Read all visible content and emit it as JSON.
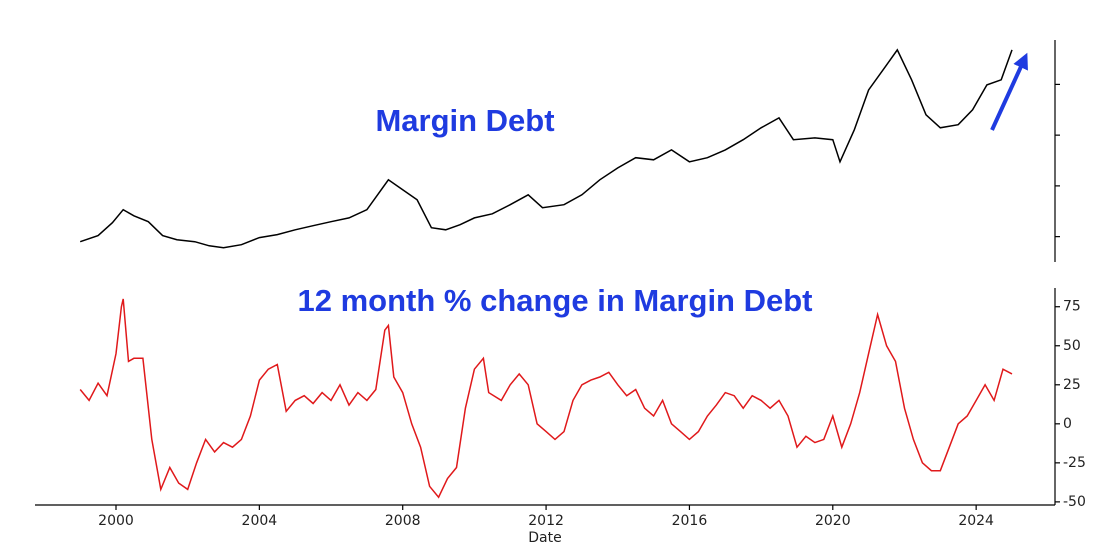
{
  "chart_data": [
    {
      "type": "line",
      "title": "Margin Debt",
      "color": "#000000",
      "xlim": [
        1997.74,
        2026.2
      ],
      "ylim": [
        100,
        975
      ],
      "yticks": [
        200,
        400,
        600,
        800
      ],
      "show_ytick_labels": false,
      "x": [
        1999.0,
        1999.5,
        1999.9,
        2000.2,
        2000.5,
        2000.9,
        2001.3,
        2001.7,
        2002.2,
        2002.6,
        2003.0,
        2003.5,
        2004.0,
        2004.5,
        2005.0,
        2005.5,
        2006.0,
        2006.5,
        2007.0,
        2007.3,
        2007.6,
        2008.0,
        2008.4,
        2008.8,
        2009.2,
        2009.6,
        2010.0,
        2010.5,
        2011.0,
        2011.5,
        2011.9,
        2012.5,
        2013.0,
        2013.5,
        2014.0,
        2014.5,
        2015.0,
        2015.5,
        2016.0,
        2016.5,
        2017.0,
        2017.5,
        2018.0,
        2018.5,
        2018.9,
        2019.5,
        2020.0,
        2020.2,
        2020.6,
        2021.0,
        2021.5,
        2021.8,
        2022.2,
        2022.6,
        2023.0,
        2023.5,
        2023.9,
        2024.3,
        2024.7,
        2025.0
      ],
      "values": [
        180,
        204,
        255,
        306,
        282,
        259,
        204,
        188,
        180,
        164,
        156,
        168,
        196,
        208,
        227,
        243,
        259,
        274,
        306,
        365,
        424,
        385,
        345,
        235,
        227,
        247,
        274,
        290,
        326,
        365,
        314,
        326,
        365,
        424,
        471,
        511,
        503,
        542,
        495,
        511,
        542,
        582,
        629,
        668,
        582,
        589,
        582,
        495,
        621,
        778,
        877,
        936,
        818,
        680,
        629,
        641,
        700,
        798,
        818,
        936
      ]
    },
    {
      "type": "line",
      "title": "12 month % change in Margin Debt",
      "color": "#e0191b",
      "xlim": [
        1997.74,
        2026.2
      ],
      "xticks": [
        2000,
        2004,
        2008,
        2012,
        2016,
        2020,
        2024
      ],
      "xlabel": "Date",
      "ylim": [
        -52,
        87
      ],
      "yticks": [
        -50,
        -25,
        0,
        25,
        50,
        75
      ],
      "show_ytick_labels": true,
      "x": [
        1999.0,
        1999.25,
        1999.5,
        1999.75,
        2000.0,
        2000.15,
        2000.2,
        2000.35,
        2000.5,
        2000.75,
        2001.0,
        2001.25,
        2001.5,
        2001.75,
        2002.0,
        2002.25,
        2002.5,
        2002.75,
        2003.0,
        2003.25,
        2003.5,
        2003.75,
        2004.0,
        2004.25,
        2004.5,
        2004.75,
        2005.0,
        2005.25,
        2005.5,
        2005.75,
        2006.0,
        2006.25,
        2006.5,
        2006.75,
        2007.0,
        2007.25,
        2007.5,
        2007.6,
        2007.75,
        2008.0,
        2008.25,
        2008.5,
        2008.75,
        2009.0,
        2009.25,
        2009.5,
        2009.75,
        2010.0,
        2010.25,
        2010.4,
        2010.75,
        2011.0,
        2011.25,
        2011.5,
        2011.75,
        2012.0,
        2012.25,
        2012.5,
        2012.75,
        2013.0,
        2013.25,
        2013.5,
        2013.75,
        2014.0,
        2014.25,
        2014.5,
        2014.75,
        2015.0,
        2015.25,
        2015.5,
        2015.75,
        2016.0,
        2016.25,
        2016.5,
        2016.75,
        2017.0,
        2017.25,
        2017.5,
        2017.75,
        2018.0,
        2018.25,
        2018.5,
        2018.75,
        2019.0,
        2019.25,
        2019.5,
        2019.75,
        2020.0,
        2020.25,
        2020.5,
        2020.75,
        2021.0,
        2021.25,
        2021.5,
        2021.75,
        2022.0,
        2022.25,
        2022.5,
        2022.75,
        2023.0,
        2023.25,
        2023.5,
        2023.75,
        2024.0,
        2024.25,
        2024.5,
        2024.75,
        2025.0
      ],
      "values": [
        22,
        15,
        26,
        18,
        45,
        75,
        80,
        40,
        42,
        42,
        -10,
        -42,
        -28,
        -38,
        -42,
        -25,
        -10,
        -18,
        -12,
        -15,
        -10,
        5,
        28,
        35,
        38,
        8,
        15,
        18,
        13,
        20,
        15,
        25,
        12,
        20,
        15,
        22,
        60,
        63,
        30,
        20,
        0,
        -15,
        -40,
        -47,
        -35,
        -28,
        10,
        35,
        42,
        20,
        15,
        25,
        32,
        25,
        0,
        -5,
        -10,
        -5,
        15,
        25,
        28,
        30,
        33,
        25,
        18,
        22,
        10,
        5,
        15,
        0,
        -5,
        -10,
        -5,
        5,
        12,
        20,
        18,
        10,
        18,
        15,
        10,
        15,
        5,
        -15,
        -8,
        -12,
        -10,
        5,
        -15,
        0,
        20,
        45,
        70,
        50,
        40,
        10,
        -10,
        -25,
        -30,
        -30,
        -15,
        0,
        5,
        15,
        25,
        15,
        35,
        32
      ]
    }
  ]
}
